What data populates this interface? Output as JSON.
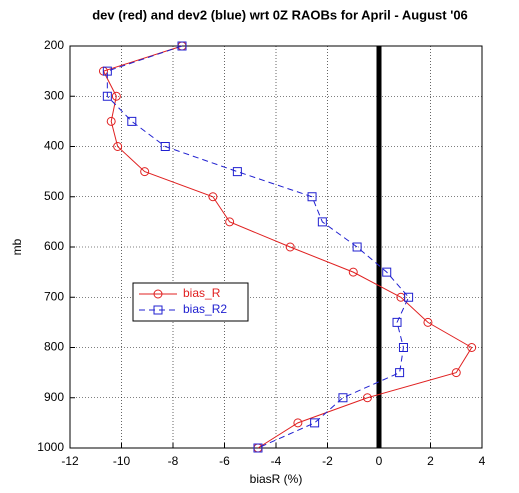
{
  "chart_data": {
    "type": "line",
    "title": "dev (red) and dev2 (blue) wrt 0Z RAOBs for April - August '06",
    "xlabel": "biasR (%)",
    "ylabel": "mb",
    "y": [
      200,
      250,
      300,
      350,
      400,
      450,
      500,
      550,
      600,
      650,
      700,
      750,
      800,
      850,
      900,
      950,
      1000
    ],
    "series": [
      {
        "name": "bias_R",
        "color": "#e02020",
        "marker": "circle",
        "dashed": false,
        "x": [
          -7.65,
          -10.7,
          -10.2,
          -10.4,
          -10.15,
          -9.1,
          -6.45,
          -5.8,
          -3.45,
          -1.0,
          0.85,
          1.9,
          3.6,
          3.0,
          -0.45,
          -3.15,
          -4.7
        ]
      },
      {
        "name": "bias_R2",
        "color": "#2020d0",
        "marker": "square",
        "dashed": true,
        "x": [
          -7.65,
          -10.55,
          -10.55,
          -9.6,
          -8.3,
          -5.5,
          -2.6,
          -2.2,
          -0.85,
          0.3,
          1.15,
          0.7,
          0.95,
          0.8,
          -1.4,
          -2.5,
          -4.7
        ]
      }
    ],
    "xlim": [
      -12,
      4
    ],
    "ylim": [
      200,
      1000
    ],
    "y_inverted": true,
    "xticks": [
      -12,
      -10,
      -8,
      -6,
      -4,
      -2,
      0,
      2,
      4
    ],
    "yticks": [
      200,
      300,
      400,
      500,
      600,
      700,
      800,
      900,
      1000
    ],
    "grid": true,
    "vline": 0,
    "legend": "left"
  }
}
